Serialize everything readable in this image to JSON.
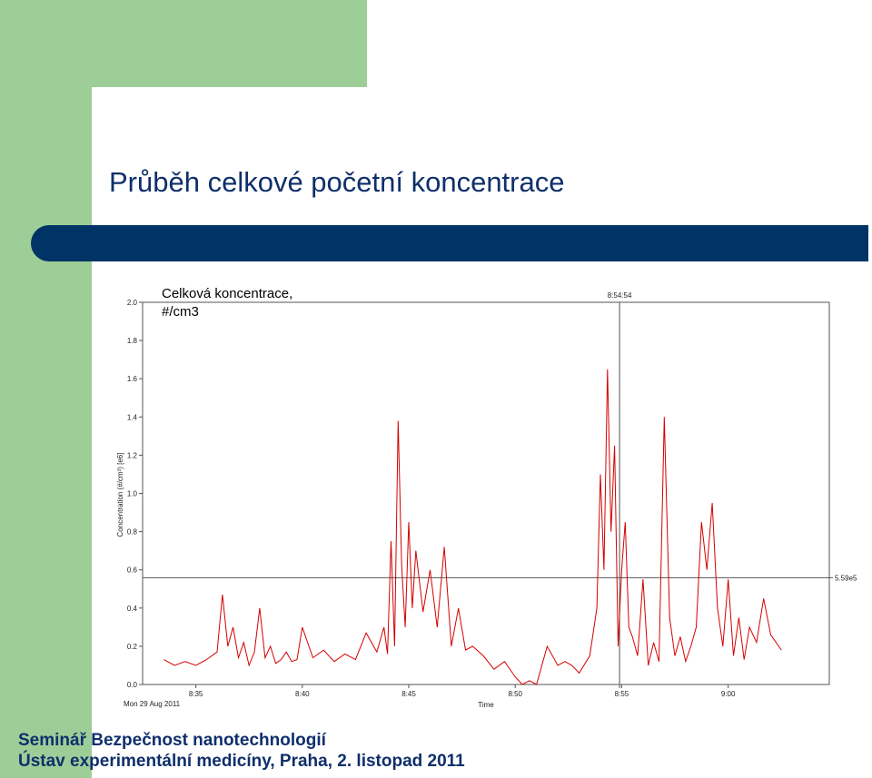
{
  "slide": {
    "title": "Průběh  celkové početní koncentrace",
    "footer_line1": "Seminář  Bezpečnost nanotechnologií",
    "footer_line2": "Ústav experimentální medicíny, Praha, 2. listopad 2011",
    "colors": {
      "green": "#9dce98",
      "navy": "#003366",
      "text": "#0f2f6b",
      "series": "#d40000"
    }
  },
  "chart_data": {
    "type": "line",
    "title": "Celková koncentrace, #/cm3",
    "xlabel": "Time",
    "ylabel": "Concentration (#/cm³) [e6]",
    "date_label": "Mon 29 Aug 2011",
    "x_ticks": [
      "8:35",
      "8:40",
      "8:45",
      "8:50",
      "8:55",
      "9:00"
    ],
    "y_ticks": [
      "0.0",
      "0.2",
      "0.4",
      "0.6",
      "0.8",
      "1.0",
      "1.2",
      "1.4",
      "1.6",
      "1.8",
      "2.0"
    ],
    "ylim": [
      0,
      2.0
    ],
    "xlim_minutes": [
      "8:32:30",
      "9:04:45"
    ],
    "cursor_time_label": "8:54:54",
    "cursor_time": "8:54:54",
    "hline_value": 0.559,
    "hline_label": "5.59e5",
    "grid": false,
    "series": [
      {
        "x": [
          "8:33:30",
          "8:34:00",
          "8:34:30",
          "8:35:00",
          "8:35:30",
          "8:36:00",
          "8:36:15",
          "8:36:30",
          "8:36:45",
          "8:37:00",
          "8:37:15",
          "8:37:30",
          "8:37:45",
          "8:38:00",
          "8:38:15",
          "8:38:30",
          "8:38:45",
          "8:39:00",
          "8:39:15",
          "8:39:30",
          "8:39:45",
          "8:40:00",
          "8:40:30",
          "8:41:00",
          "8:41:30",
          "8:42:00",
          "8:42:30",
          "8:43:00",
          "8:43:30",
          "8:43:50",
          "8:44:00",
          "8:44:10",
          "8:44:20",
          "8:44:30",
          "8:44:40",
          "8:44:50",
          "8:45:00",
          "8:45:10",
          "8:45:20",
          "8:45:40",
          "8:46:00",
          "8:46:20",
          "8:46:40",
          "8:47:00",
          "8:47:20",
          "8:47:40",
          "8:48:00",
          "8:48:30",
          "8:49:00",
          "8:49:30",
          "8:50:00",
          "8:50:20",
          "8:50:40",
          "8:51:00",
          "8:51:30",
          "8:52:00",
          "8:52:20",
          "8:52:40",
          "8:53:00",
          "8:53:30",
          "8:53:50",
          "8:54:00",
          "8:54:10",
          "8:54:20",
          "8:54:30",
          "8:54:40",
          "8:54:50",
          "8:55:00",
          "8:55:10",
          "8:55:20",
          "8:55:30",
          "8:55:45",
          "8:56:00",
          "8:56:15",
          "8:56:30",
          "8:56:45",
          "8:57:00",
          "8:57:15",
          "8:57:30",
          "8:57:45",
          "8:58:00",
          "8:58:15",
          "8:58:30",
          "8:58:45",
          "8:59:00",
          "8:59:15",
          "8:59:30",
          "8:59:45",
          "9:00:00",
          "9:00:15",
          "9:00:30",
          "9:00:45",
          "9:01:00",
          "9:01:20",
          "9:01:40",
          "9:02:00",
          "9:02:30"
        ],
        "values": [
          0.13,
          0.1,
          0.12,
          0.1,
          0.13,
          0.17,
          0.47,
          0.2,
          0.3,
          0.14,
          0.22,
          0.1,
          0.17,
          0.4,
          0.14,
          0.2,
          0.11,
          0.13,
          0.17,
          0.12,
          0.13,
          0.3,
          0.14,
          0.18,
          0.12,
          0.16,
          0.13,
          0.27,
          0.17,
          0.3,
          0.16,
          0.75,
          0.2,
          1.38,
          0.62,
          0.3,
          0.85,
          0.4,
          0.7,
          0.38,
          0.6,
          0.3,
          0.72,
          0.2,
          0.4,
          0.18,
          0.2,
          0.15,
          0.08,
          0.12,
          0.04,
          -0.05,
          0.02,
          -0.05,
          0.2,
          0.1,
          0.12,
          0.1,
          0.06,
          0.15,
          0.4,
          1.1,
          0.6,
          1.65,
          0.8,
          1.25,
          0.2,
          0.6,
          0.85,
          0.3,
          0.25,
          0.15,
          0.55,
          0.1,
          0.22,
          0.12,
          1.4,
          0.35,
          0.15,
          0.25,
          0.12,
          0.2,
          0.3,
          0.85,
          0.6,
          0.95,
          0.4,
          0.2,
          0.55,
          0.15,
          0.35,
          0.13,
          0.3,
          0.22,
          0.45,
          0.26,
          0.18
        ]
      }
    ]
  }
}
